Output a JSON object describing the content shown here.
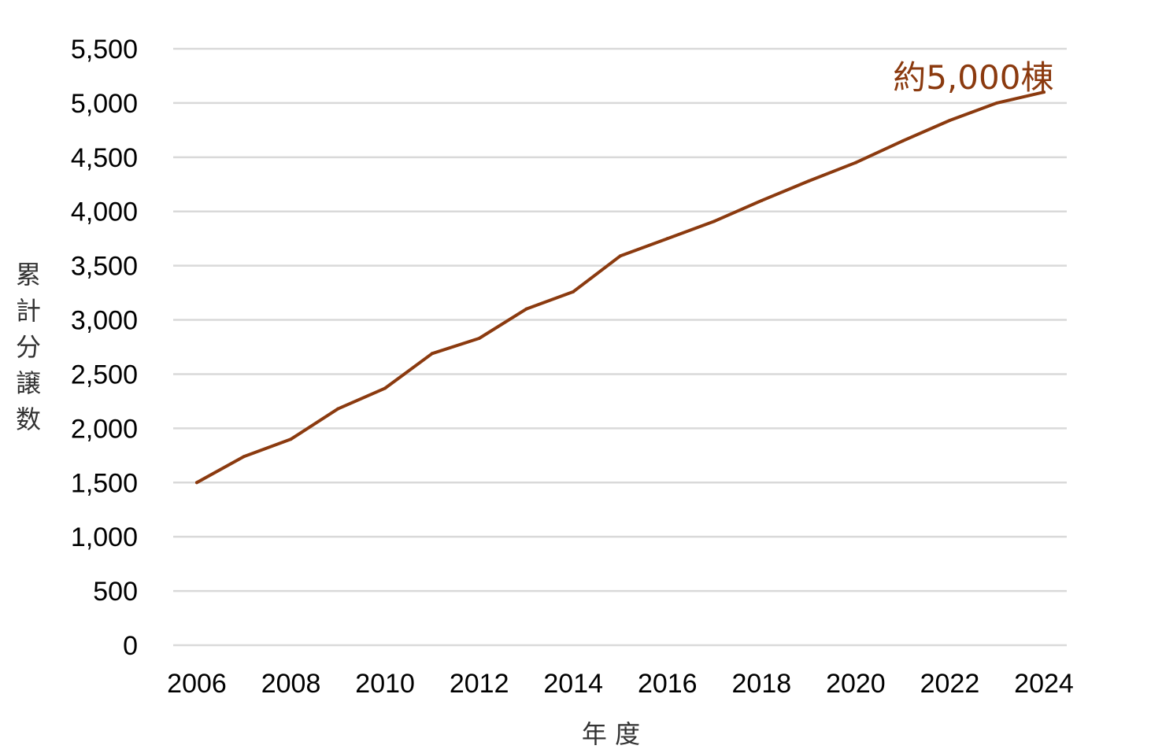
{
  "chart_data": {
    "type": "line",
    "title": "",
    "xlabel": "年 度",
    "ylabel": "累計分譲数",
    "x": [
      2006,
      2007,
      2008,
      2009,
      2010,
      2011,
      2012,
      2013,
      2014,
      2015,
      2016,
      2017,
      2018,
      2019,
      2020,
      2021,
      2022,
      2023,
      2024
    ],
    "series": [
      {
        "values": [
          1500,
          1740,
          1900,
          2180,
          2370,
          2690,
          2830,
          3100,
          3260,
          3590,
          3750,
          3910,
          4100,
          4280,
          4450,
          4650,
          4840,
          5000,
          5100
        ],
        "color": "#8B3A0F"
      }
    ],
    "xticks": [
      "2006",
      "2008",
      "2010",
      "2012",
      "2014",
      "2016",
      "2018",
      "2020",
      "2022",
      "2024"
    ],
    "yticks": [
      "0",
      "500",
      "1,000",
      "1,500",
      "2,000",
      "2,500",
      "3,000",
      "3,500",
      "4,000",
      "4,500",
      "5,000",
      "5,500"
    ],
    "ylim": [
      0,
      5500
    ],
    "xlim": [
      2006,
      2024
    ],
    "grid": "horizontal",
    "annotations": [
      {
        "text": "約5,000棟",
        "x": 2022.5,
        "y": 5240
      }
    ],
    "gridline_color": "#d9d9d9"
  }
}
